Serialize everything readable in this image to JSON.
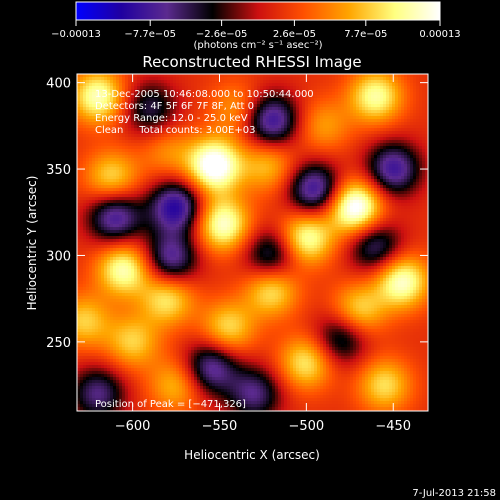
{
  "chart_data": {
    "type": "heatmap",
    "title": "Reconstructed RHESSI Image",
    "xlabel": "Heliocentric X (arcsec)",
    "ylabel": "Heliocentric Y (arcsec)",
    "xlim": [
      -632,
      -430
    ],
    "ylim": [
      210,
      405
    ],
    "x_ticks": [
      -600,
      -550,
      -500,
      -450
    ],
    "x_tick_labels": [
      "−600",
      "−550",
      "−500",
      "−450"
    ],
    "y_ticks": [
      250,
      300,
      350,
      400
    ],
    "y_tick_labels": [
      "250",
      "300",
      "350",
      "400"
    ],
    "colorbar": {
      "range": [
        -0.00013,
        0.00013
      ],
      "ticks": [
        -0.00013,
        -7.7e-05,
        -2.6e-05,
        2.6e-05,
        7.7e-05,
        0.00013
      ],
      "tick_labels": [
        "−0.00013",
        "−7.7e−05",
        "−2.6e−05",
        "2.6e−05",
        "7.7e−05",
        "0.00013"
      ],
      "unit_label": "(photons cm⁻² s⁻¹ asec⁻²)",
      "colormap_stops": [
        "#0000ff",
        "#2000a0",
        "#5b2a8f",
        "#000000",
        "#cc1010",
        "#ff5000",
        "#ffa500",
        "#ffff80",
        "#ffffff"
      ]
    },
    "annotations": [
      "13-Dec-2005 10:46:08.000 to 10:50:44.000",
      "Detectors: 4F 5F 6F 7F 8F, Att 0",
      "Energy Range: 12.0 - 25.0 keV",
      "Clean     Total counts: 3.00E+03"
    ],
    "peak_label": "Position of Peak = [−471,326]",
    "peak": [
      -471,
      326
    ],
    "grid": false,
    "sources": [
      {
        "x": -553,
        "y": 352,
        "v": 1.0
      },
      {
        "x": -472,
        "y": 328,
        "v": 1.0
      },
      {
        "x": -620,
        "y": 392,
        "v": 0.75
      },
      {
        "x": -460,
        "y": 392,
        "v": 0.7
      },
      {
        "x": -522,
        "y": 352,
        "v": 0.45
      },
      {
        "x": -612,
        "y": 345,
        "v": 0.55
      },
      {
        "x": -548,
        "y": 318,
        "v": 0.8
      },
      {
        "x": -500,
        "y": 310,
        "v": 0.75
      },
      {
        "x": -445,
        "y": 285,
        "v": 0.8
      },
      {
        "x": -605,
        "y": 292,
        "v": 0.75
      },
      {
        "x": -520,
        "y": 280,
        "v": 0.6
      },
      {
        "x": -580,
        "y": 275,
        "v": 0.6
      },
      {
        "x": -470,
        "y": 268,
        "v": 0.55
      },
      {
        "x": -628,
        "y": 262,
        "v": 0.5
      },
      {
        "x": -545,
        "y": 258,
        "v": 0.55
      },
      {
        "x": -600,
        "y": 250,
        "v": 0.5
      },
      {
        "x": -500,
        "y": 238,
        "v": 0.6
      },
      {
        "x": -455,
        "y": 225,
        "v": 0.55
      },
      {
        "x": -575,
        "y": 225,
        "v": 0.45
      },
      {
        "x": -540,
        "y": 385,
        "v": 0.35
      },
      {
        "x": -580,
        "y": 360,
        "v": 0.3
      },
      {
        "x": -490,
        "y": 375,
        "v": 0.35
      },
      {
        "x": -575,
        "y": 328,
        "v": -0.85
      },
      {
        "x": -520,
        "y": 378,
        "v": -0.8
      },
      {
        "x": -450,
        "y": 350,
        "v": -0.75
      },
      {
        "x": -495,
        "y": 338,
        "v": -0.8
      },
      {
        "x": -610,
        "y": 322,
        "v": -0.75
      },
      {
        "x": -578,
        "y": 298,
        "v": -0.7
      },
      {
        "x": -520,
        "y": 300,
        "v": -0.6
      },
      {
        "x": -460,
        "y": 305,
        "v": -0.6
      },
      {
        "x": -555,
        "y": 235,
        "v": -0.7
      },
      {
        "x": -620,
        "y": 220,
        "v": -0.6
      },
      {
        "x": -530,
        "y": 220,
        "v": -0.6
      },
      {
        "x": -590,
        "y": 385,
        "v": -0.5
      },
      {
        "x": -480,
        "y": 252,
        "v": -0.55
      }
    ]
  },
  "timestamp": "7-Jul-2013 21:58"
}
